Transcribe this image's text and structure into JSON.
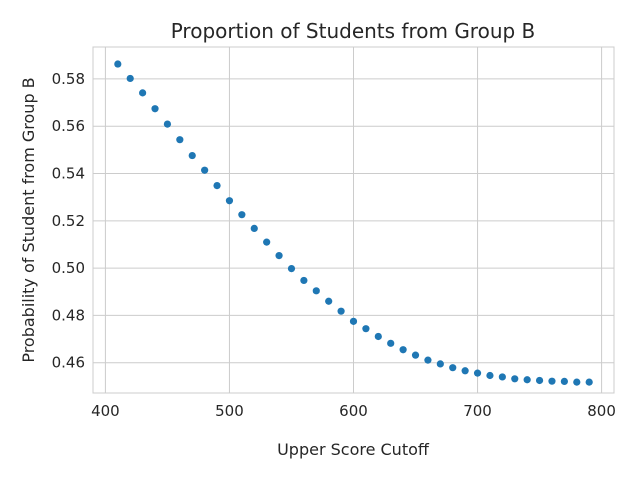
{
  "chart_data": {
    "type": "scatter",
    "title": "Proportion of Students from Group B",
    "xlabel": "Upper Score Cutoff",
    "ylabel": "Probability of Student from Group B",
    "xlim": [
      390,
      810
    ],
    "ylim": [
      0.4472,
      0.5935
    ],
    "xticks": [
      400,
      500,
      600,
      700,
      800
    ],
    "yticks": [
      0.46,
      0.48,
      0.5,
      0.52,
      0.54,
      0.56,
      0.58
    ],
    "ytick_labels": [
      "0.46",
      "0.48",
      "0.50",
      "0.52",
      "0.54",
      "0.56",
      "0.58"
    ],
    "grid": true,
    "color": "#1f77b4",
    "x": [
      410,
      420,
      430,
      440,
      450,
      460,
      470,
      480,
      490,
      500,
      510,
      520,
      530,
      540,
      550,
      560,
      570,
      580,
      590,
      600,
      610,
      620,
      630,
      640,
      650,
      660,
      670,
      680,
      690,
      700,
      710,
      720,
      730,
      740,
      750,
      760,
      770,
      780,
      790
    ],
    "y": [
      0.5863,
      0.5802,
      0.5741,
      0.5674,
      0.5609,
      0.5543,
      0.5476,
      0.5414,
      0.5349,
      0.5285,
      0.5226,
      0.5168,
      0.511,
      0.5053,
      0.4998,
      0.4948,
      0.4904,
      0.486,
      0.4818,
      0.4775,
      0.4744,
      0.4711,
      0.4682,
      0.4655,
      0.4632,
      0.4611,
      0.4595,
      0.4579,
      0.4566,
      0.4556,
      0.4546,
      0.454,
      0.4532,
      0.4528,
      0.4525,
      0.4522,
      0.4521,
      0.4518,
      0.4518
    ]
  }
}
